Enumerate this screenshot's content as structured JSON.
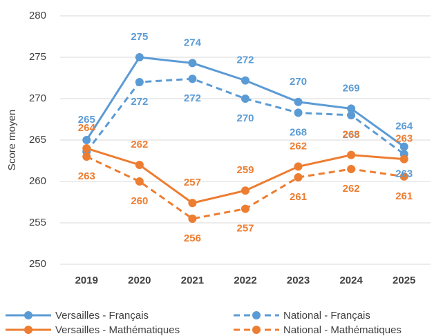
{
  "chart_data": {
    "type": "line",
    "y_label": "Score moyen",
    "categories": [
      "2019",
      "2020",
      "2021",
      "2022",
      "2023",
      "2024",
      "2025"
    ],
    "ylim": [
      250,
      280
    ],
    "yticks": [
      250,
      255,
      260,
      265,
      270,
      275,
      280
    ],
    "grid": true,
    "series": [
      {
        "name": "Versailles - Français",
        "color": "#5b9bd5",
        "dashed": false,
        "label_side": "above",
        "values": [
          265,
          275,
          274.3,
          272.2,
          269.6,
          268.8,
          264.2
        ],
        "value_labels": [
          "265",
          "275",
          "274",
          "272",
          "270",
          "269",
          "264"
        ]
      },
      {
        "name": "National - Français",
        "color": "#5b9bd5",
        "dashed": true,
        "label_side": "below",
        "values": [
          263.6,
          272,
          272.4,
          270,
          268.3,
          268,
          263.3
        ],
        "value_labels": [
          null,
          "272",
          "272",
          "270",
          "268",
          "268",
          "263"
        ]
      },
      {
        "name": "Versailles - Mathématiques",
        "color": "#ed7d31",
        "dashed": false,
        "label_side": "above",
        "values": [
          264,
          262,
          257.4,
          258.9,
          261.8,
          263.2,
          262.7
        ],
        "value_labels": [
          "264",
          "262",
          "257",
          "259",
          "262",
          "263",
          "263"
        ]
      },
      {
        "name": "National - Mathématiques",
        "color": "#ed7d31",
        "dashed": true,
        "label_side": "below",
        "values": [
          263,
          260,
          255.5,
          256.7,
          260.5,
          261.5,
          260.6
        ],
        "value_labels": [
          "263",
          "260",
          "256",
          "257",
          "261",
          "262",
          "261"
        ]
      }
    ]
  }
}
